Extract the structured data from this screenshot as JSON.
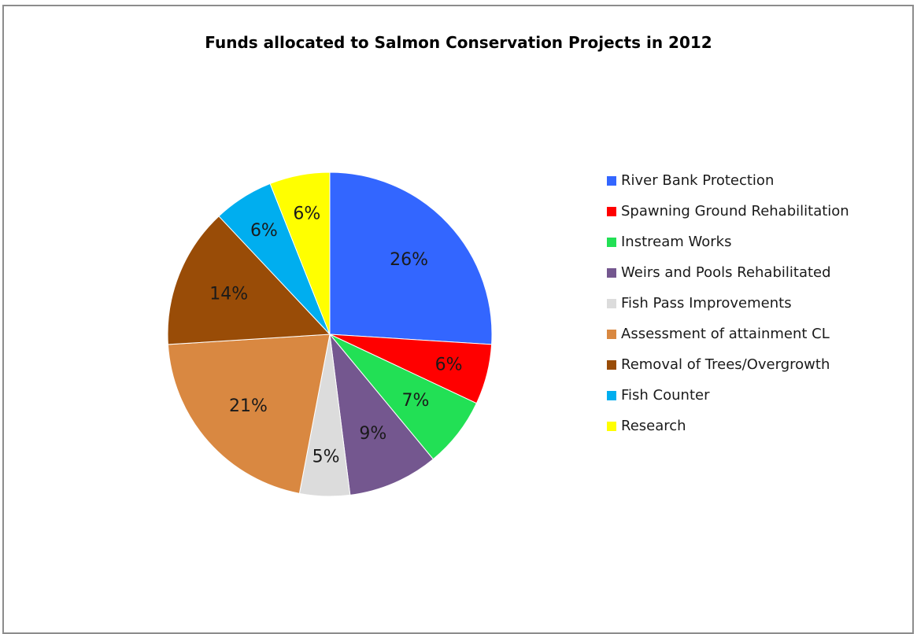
{
  "chart_data": {
    "type": "pie",
    "title": "Funds allocated to Salmon Conservation Projects in 2012",
    "legend_position": "right",
    "slices": [
      {
        "label": "River Bank Protection",
        "value": 26,
        "display": "26%",
        "color": "#3366ff"
      },
      {
        "label": "Spawning Ground Rehabilitation",
        "value": 6,
        "display": "6%",
        "color": "#ff0000"
      },
      {
        "label": "Instream Works",
        "value": 7,
        "display": "7%",
        "color": "#22e055"
      },
      {
        "label": "Weirs and Pools Rehabilitated",
        "value": 9,
        "display": "9%",
        "color": "#74578f"
      },
      {
        "label": "Fish Pass Improvements",
        "value": 5,
        "display": "5%",
        "color": "#dcdcdc"
      },
      {
        "label": "Assessment of attainment CL",
        "value": 21,
        "display": "21%",
        "color": "#d98841"
      },
      {
        "label": "Removal of Trees/Overgrowth",
        "value": 14,
        "display": "14%",
        "color": "#994c07"
      },
      {
        "label": "Fish Counter",
        "value": 6,
        "display": "6%",
        "color": "#00aeef"
      },
      {
        "label": "Research",
        "value": 6,
        "display": "6%",
        "color": "#ffff00"
      }
    ]
  }
}
